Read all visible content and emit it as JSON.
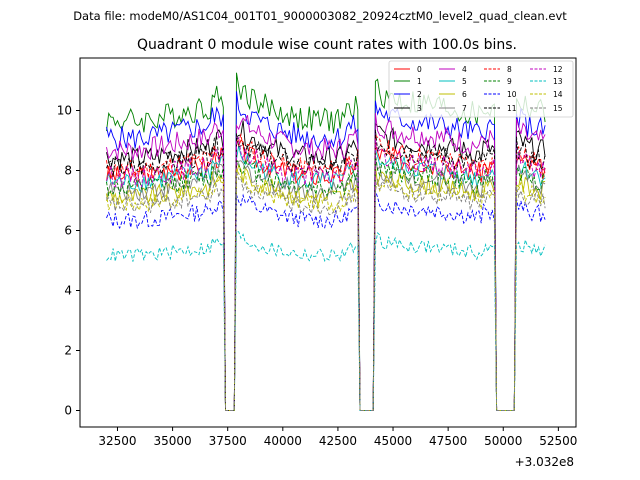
{
  "chart_data": {
    "type": "line",
    "suptitle": "Data file: modeM0/AS1C04_001T01_9000003082_20924cztM0_level2_quad_clean.evt",
    "title": "Quadrant 0 module wise count rates with 100.0s bins.",
    "xlabel": "",
    "ylabel": "",
    "x_offset_label": "+3.032e8",
    "x_offset": 303200000,
    "xlim": [
      30800,
      53300
    ],
    "ylim": [
      -0.55,
      11.75
    ],
    "x_ticks": [
      32500,
      35000,
      37500,
      40000,
      42500,
      45000,
      47500,
      50000,
      52500
    ],
    "x_tick_labels": [
      "32500",
      "35000",
      "37500",
      "40000",
      "42500",
      "45000",
      "47500",
      "50000",
      "52500"
    ],
    "y_ticks": [
      0,
      2,
      4,
      6,
      8,
      10
    ],
    "y_tick_labels": [
      "0",
      "2",
      "4",
      "6",
      "8",
      "10"
    ],
    "x_start": 32000,
    "x_end": 51900,
    "bin_width": 100,
    "gaps": [
      [
        37400,
        37800
      ],
      [
        43500,
        44100
      ],
      [
        49700,
        50500
      ]
    ],
    "legend_position": "upper right",
    "legend_columns": 4,
    "series_summary": "16 module light curves (0-15); approximate mean count rate per module from the plotted bands",
    "series": [
      {
        "name": "0",
        "mean": 8.0,
        "color": "#ff0000",
        "dash": "solid"
      },
      {
        "name": "1",
        "mean": 9.9,
        "color": "#008000",
        "dash": "solid"
      },
      {
        "name": "2",
        "mean": 9.3,
        "color": "#0000ff",
        "dash": "solid"
      },
      {
        "name": "3",
        "mean": 8.6,
        "color": "#000000",
        "dash": "solid"
      },
      {
        "name": "4",
        "mean": 8.9,
        "color": "#bf00bf",
        "dash": "solid"
      },
      {
        "name": "5",
        "mean": 7.8,
        "color": "#00bfbf",
        "dash": "solid"
      },
      {
        "name": "6",
        "mean": 7.3,
        "color": "#bfbf00",
        "dash": "solid"
      },
      {
        "name": "7",
        "mean": 7.5,
        "color": "#808080",
        "dash": "solid"
      },
      {
        "name": "8",
        "mean": 8.2,
        "color": "#ff0000",
        "dash": "dashed"
      },
      {
        "name": "9",
        "mean": 7.6,
        "color": "#008000",
        "dash": "dashed"
      },
      {
        "name": "10",
        "mean": 6.5,
        "color": "#0000ff",
        "dash": "dashed"
      },
      {
        "name": "11",
        "mean": 8.3,
        "color": "#000000",
        "dash": "dashed"
      },
      {
        "name": "12",
        "mean": 8.0,
        "color": "#bf00bf",
        "dash": "dashed"
      },
      {
        "name": "13",
        "mean": 5.3,
        "color": "#00bfbf",
        "dash": "dashed"
      },
      {
        "name": "14",
        "mean": 7.1,
        "color": "#bfbf00",
        "dash": "dashed"
      },
      {
        "name": "15",
        "mean": 7.0,
        "color": "#808080",
        "dash": "dashed"
      }
    ]
  }
}
